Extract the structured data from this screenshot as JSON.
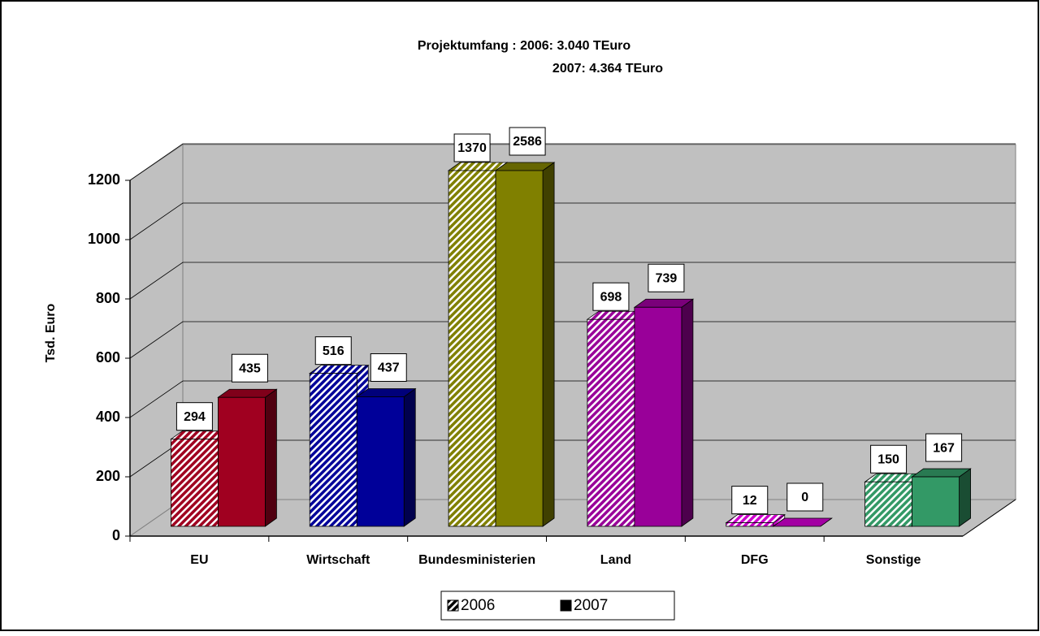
{
  "chart_data": {
    "type": "bar3d",
    "title": "Projektumfang : 2006: 3.040 TEuro",
    "subtitle": "2007: 4.364 TEuro",
    "y_label": "Tsd. Euro",
    "categories": [
      "EU",
      "Wirtschaft",
      "Bundesministerien",
      "Land",
      "DFG",
      "Sonstige"
    ],
    "colors": [
      "#a00020",
      "#000099",
      "#808000",
      "#990099",
      "#cc00cc",
      "#339966"
    ],
    "series": [
      {
        "name": "2006",
        "color": "#000000",
        "hatched": true,
        "values": [
          294,
          516,
          1370,
          698,
          12,
          150
        ]
      },
      {
        "name": "2007",
        "color": "#000000",
        "hatched": false,
        "values": [
          435,
          437,
          2586,
          739,
          0,
          167
        ]
      }
    ],
    "ylim": [
      0,
      1200
    ],
    "yticks": [
      0,
      200,
      400,
      600,
      800,
      1000,
      1200
    ],
    "grid": true
  }
}
